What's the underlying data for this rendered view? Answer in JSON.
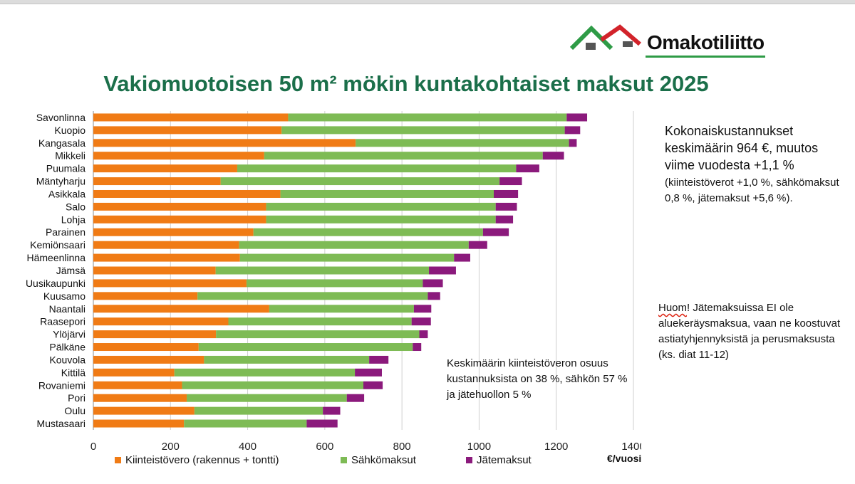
{
  "logo": {
    "text": "Omakotiliitto",
    "colors": {
      "house_left": "#2e9b46",
      "house_right": "#d2232a",
      "underline": "#2e9b46"
    }
  },
  "title": "Vakiomuotoisen 50 m² mökin kuntakohtaiset maksut 2025",
  "notes": {
    "summary_main": "Kokonaiskustannukset keskimäärin 964 €, muutos viime vuodesta +1,1 %",
    "summary_detail": "(kiinteistöverot +1,0 %, sähkömaksut 0,8 %, jätemaksut +5,6 %).",
    "huom_word": "Huom",
    "huom_rest": "! Jätemaksuissa EI ole aluekeräysmaksua, vaan ne koostuvat astiatyhjennyksistä ja perusmaksusta (ks. diat 11-12)",
    "share": "Keskimäärin kiinteistöveron osuus kustannuksista on 38 %, sähkön 57 % ja jätehuollon 5 %"
  },
  "chart_data": {
    "type": "bar",
    "orientation": "horizontal",
    "stacked": true,
    "categories": [
      "Savonlinna",
      "Kuopio",
      "Kangasala",
      "Mikkeli",
      "Puumala",
      "Mäntyharju",
      "Asikkala",
      "Salo",
      "Lohja",
      "Parainen",
      "Kemiönsaari",
      "Hämeenlinna",
      "Jämsä",
      "Uusikaupunki",
      "Kuusamo",
      "Naantali",
      "Raasepori",
      "Ylöjärvi",
      "Pälkäne",
      "Kouvola",
      "Kittilä",
      "Rovaniemi",
      "Pori",
      "Oulu",
      "Mustasaari"
    ],
    "series": [
      {
        "name": "Kiinteistövero (rakennus + tontti)",
        "color": "#f07b15",
        "values": [
          505,
          488,
          680,
          443,
          373,
          330,
          485,
          448,
          448,
          415,
          378,
          380,
          317,
          397,
          270,
          456,
          350,
          318,
          273,
          287,
          210,
          230,
          242,
          262,
          235
        ]
      },
      {
        "name": "Sähkömaksut",
        "color": "#7ebb55",
        "values": [
          722,
          734,
          553,
          722,
          723,
          723,
          553,
          595,
          595,
          595,
          595,
          555,
          553,
          457,
          597,
          375,
          475,
          527,
          555,
          428,
          468,
          470,
          415,
          333,
          318
        ]
      },
      {
        "name": "Jätemaksut",
        "color": "#8b1a7c",
        "values": [
          53,
          40,
          20,
          55,
          60,
          58,
          63,
          55,
          45,
          67,
          48,
          42,
          70,
          52,
          32,
          45,
          50,
          22,
          22,
          50,
          70,
          50,
          45,
          45,
          80
        ]
      }
    ],
    "xlim": [
      0,
      1400
    ],
    "xticks": [
      0,
      200,
      400,
      600,
      800,
      1000,
      1200,
      1400
    ],
    "xlabel": "€/vuosi",
    "grid": "vertical",
    "legend": "bottom"
  }
}
